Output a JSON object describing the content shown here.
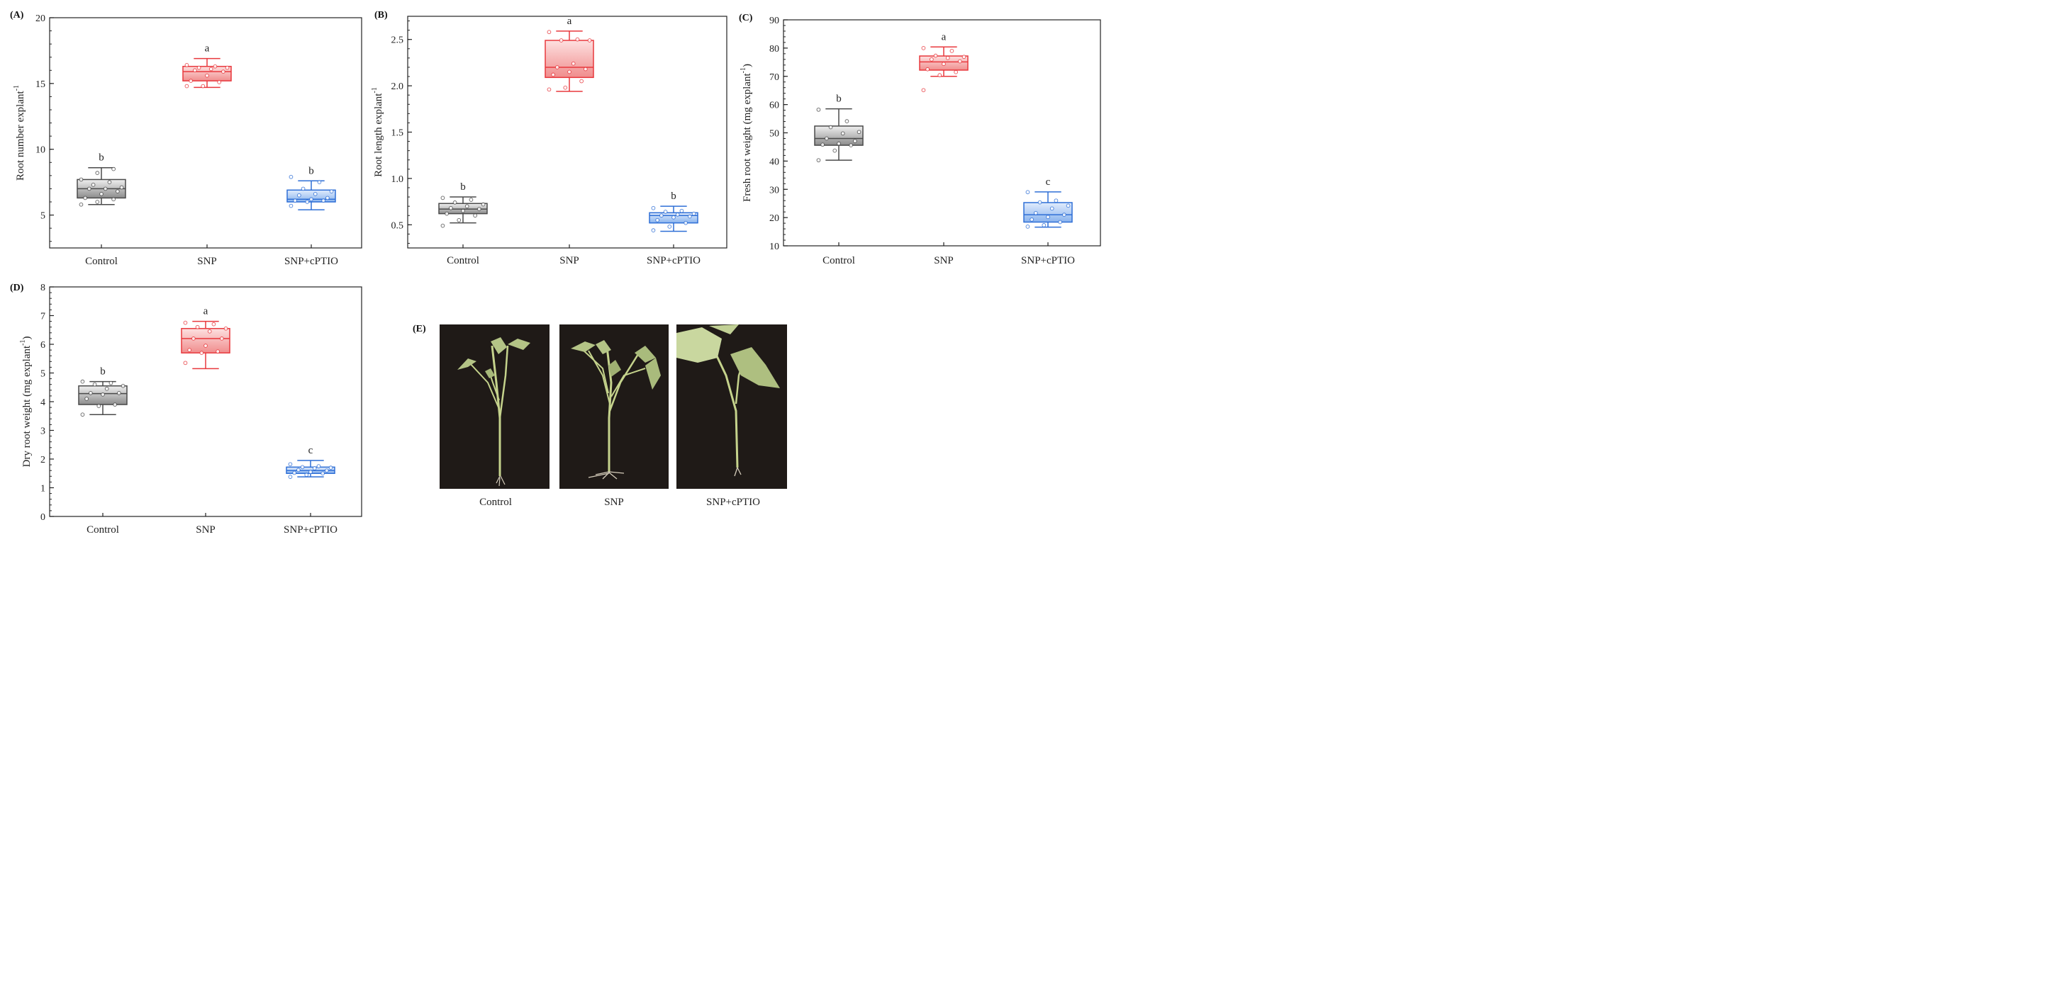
{
  "panel_letters": [
    "(A)",
    "(B)",
    "(C)",
    "(D)",
    "(E)"
  ],
  "styles": {
    "groups": {
      "Control": {
        "stroke": "#4a4a4a",
        "fill_top": "#f0f0f0",
        "fill_bottom": "#8c8c8c"
      },
      "SNP": {
        "stroke": "#e8383d",
        "fill_top": "#fde0e0",
        "fill_bottom": "#f08d8d"
      },
      "SNP+cPTIO": {
        "stroke": "#2f6fd6",
        "fill_top": "#e1ecfc",
        "fill_bottom": "#89b3ee"
      }
    }
  },
  "chart_data": [
    {
      "panel": "(A)",
      "type": "box",
      "ylabel_main": "Root number explant",
      "ylabel_sup": "-1",
      "categories": [
        "Control",
        "SNP",
        "SNP+cPTIO"
      ],
      "ylim": [
        2.5,
        20
      ],
      "yticks": [
        5,
        10,
        15,
        20
      ],
      "yminor": 1,
      "boxes": [
        {
          "name": "Control",
          "min": 5.8,
          "q1": 6.3,
          "median": 7.0,
          "q3": 7.7,
          "max": 8.6,
          "sig": "b",
          "points": [
            5.8,
            6.0,
            6.2,
            6.3,
            6.6,
            6.8,
            7.0,
            7.0,
            7.1,
            7.3,
            7.5,
            7.7,
            8.2,
            8.5
          ]
        },
        {
          "name": "SNP",
          "min": 14.7,
          "q1": 15.2,
          "median": 15.9,
          "q3": 16.3,
          "max": 16.9,
          "sig": "a",
          "points": [
            14.8,
            14.8,
            15.1,
            15.2,
            15.6,
            15.9,
            16.0,
            16.1,
            16.2,
            16.2,
            16.3,
            16.4
          ]
        },
        {
          "name": "SNP+cPTIO",
          "min": 5.4,
          "q1": 6.0,
          "median": 6.2,
          "q3": 6.9,
          "max": 7.6,
          "sig": "b",
          "points": [
            5.7,
            6.0,
            6.1,
            6.1,
            6.2,
            6.3,
            6.5,
            6.6,
            6.8,
            7.0,
            7.5,
            7.9
          ]
        }
      ]
    },
    {
      "panel": "(B)",
      "type": "box",
      "ylabel_main": "Root length explant",
      "ylabel_sup": "-1",
      "categories": [
        "Control",
        "SNP",
        "SNP+cPTIO"
      ],
      "ylim": [
        0.25,
        2.75
      ],
      "yticks": [
        0.5,
        1.0,
        1.5,
        2.0,
        2.5
      ],
      "ytick_labels": [
        "0.5",
        "1.0",
        "1.5",
        "2.0",
        "2.5"
      ],
      "yminor": 0.1,
      "boxes": [
        {
          "name": "Control",
          "min": 0.52,
          "q1": 0.62,
          "median": 0.67,
          "q3": 0.73,
          "max": 0.8,
          "sig": "b",
          "points": [
            0.49,
            0.55,
            0.6,
            0.62,
            0.65,
            0.67,
            0.68,
            0.7,
            0.72,
            0.74,
            0.77,
            0.79
          ]
        },
        {
          "name": "SNP",
          "min": 1.94,
          "q1": 2.09,
          "median": 2.2,
          "q3": 2.49,
          "max": 2.59,
          "sig": "a",
          "points": [
            1.96,
            1.98,
            2.05,
            2.12,
            2.15,
            2.18,
            2.2,
            2.24,
            2.49,
            2.49,
            2.5,
            2.58
          ]
        },
        {
          "name": "SNP+cPTIO",
          "min": 0.43,
          "q1": 0.52,
          "median": 0.6,
          "q3": 0.63,
          "max": 0.7,
          "sig": "b",
          "points": [
            0.44,
            0.48,
            0.52,
            0.55,
            0.58,
            0.59,
            0.6,
            0.61,
            0.62,
            0.64,
            0.65,
            0.68
          ]
        }
      ]
    },
    {
      "panel": "(C)",
      "type": "box",
      "ylabel_main": "Fresh root weight (mg explant",
      "ylabel_sup": "-1",
      "ylabel_end": ")",
      "categories": [
        "Control",
        "SNP",
        "SNP+cPTIO"
      ],
      "ylim": [
        10,
        90
      ],
      "yticks": [
        10,
        20,
        30,
        40,
        50,
        60,
        70,
        80,
        90
      ],
      "yminor": 2,
      "boxes": [
        {
          "name": "Control",
          "min": 40.3,
          "q1": 45.6,
          "median": 48.0,
          "q3": 52.4,
          "max": 58.5,
          "sig": "b",
          "points": [
            40.3,
            43.7,
            45.6,
            45.8,
            46.2,
            47.1,
            48.0,
            49.8,
            50.3,
            52.0,
            54.1,
            58.2
          ]
        },
        {
          "name": "SNP",
          "min": 70.0,
          "q1": 72.2,
          "median": 75.1,
          "q3": 77.2,
          "max": 80.4,
          "sig": "a",
          "points": [
            65.1,
            70.4,
            71.5,
            72.5,
            74.4,
            75.3,
            76.0,
            76.5,
            76.9,
            77.3,
            79.0,
            80.0
          ]
        },
        {
          "name": "SNP+cPTIO",
          "min": 16.6,
          "q1": 18.4,
          "median": 21.0,
          "q3": 25.3,
          "max": 29.1,
          "sig": "c",
          "points": [
            16.8,
            17.3,
            18.4,
            19.3,
            20.2,
            21.0,
            21.6,
            23.2,
            24.2,
            25.4,
            26.0,
            29.0
          ]
        }
      ]
    },
    {
      "panel": "(D)",
      "type": "box",
      "ylabel_main": "Dry root weight (mg explant",
      "ylabel_sup": "-1",
      "ylabel_end": ")",
      "categories": [
        "Control",
        "SNP",
        "SNP+cPTIO"
      ],
      "ylim": [
        0,
        8
      ],
      "yticks": [
        0,
        1,
        2,
        3,
        4,
        5,
        6,
        7,
        8
      ],
      "yminor": 0.2,
      "boxes": [
        {
          "name": "Control",
          "min": 3.55,
          "q1": 3.9,
          "median": 4.28,
          "q3": 4.55,
          "max": 4.7,
          "sig": "b",
          "points": [
            3.55,
            3.85,
            3.9,
            4.1,
            4.25,
            4.3,
            4.3,
            4.45,
            4.55,
            4.6,
            4.65,
            4.7
          ]
        },
        {
          "name": "SNP",
          "min": 5.15,
          "q1": 5.7,
          "median": 6.2,
          "q3": 6.55,
          "max": 6.8,
          "sig": "a",
          "points": [
            5.35,
            5.7,
            5.75,
            5.8,
            5.95,
            6.2,
            6.2,
            6.45,
            6.55,
            6.6,
            6.7,
            6.75
          ]
        },
        {
          "name": "SNP+cPTIO",
          "min": 1.38,
          "q1": 1.5,
          "median": 1.6,
          "q3": 1.72,
          "max": 1.95,
          "sig": "c",
          "points": [
            1.38,
            1.45,
            1.5,
            1.52,
            1.55,
            1.6,
            1.62,
            1.68,
            1.7,
            1.72,
            1.75,
            1.82
          ]
        }
      ]
    }
  ],
  "photos": {
    "labels": [
      "Control",
      "SNP",
      "SNP+cPTIO"
    ],
    "background": "#1f1a17",
    "leaf_color": "#b9c98a",
    "stem_color": "#c8d58f",
    "root_color": "#d9d2c2"
  }
}
